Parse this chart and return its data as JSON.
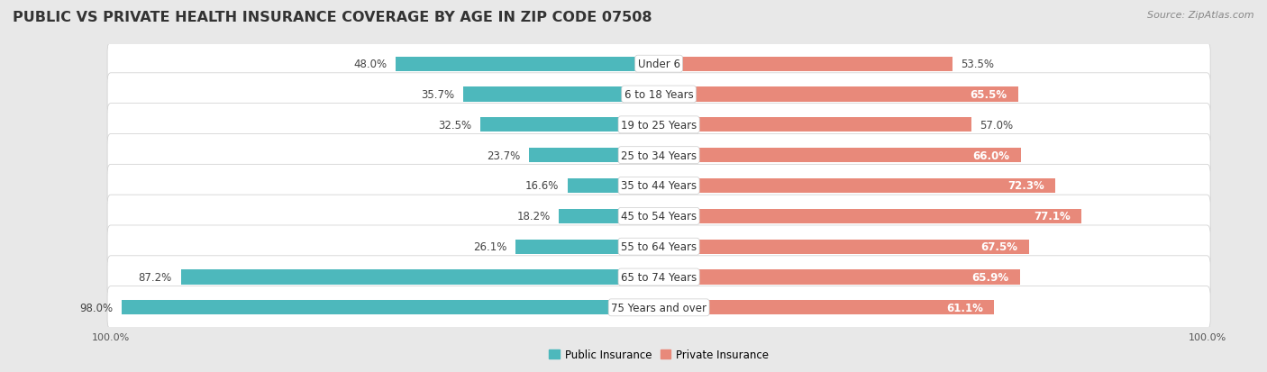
{
  "title": "PUBLIC VS PRIVATE HEALTH INSURANCE COVERAGE BY AGE IN ZIP CODE 07508",
  "source": "Source: ZipAtlas.com",
  "categories": [
    "Under 6",
    "6 to 18 Years",
    "19 to 25 Years",
    "25 to 34 Years",
    "35 to 44 Years",
    "45 to 54 Years",
    "55 to 64 Years",
    "65 to 74 Years",
    "75 Years and over"
  ],
  "public_values": [
    48.0,
    35.7,
    32.5,
    23.7,
    16.6,
    18.2,
    26.1,
    87.2,
    98.0
  ],
  "private_values": [
    53.5,
    65.5,
    57.0,
    66.0,
    72.3,
    77.1,
    67.5,
    65.9,
    61.1
  ],
  "public_color": "#4db8bc",
  "private_color": "#e8897a",
  "private_color_light": "#f2b8ad",
  "background_color": "#e8e8e8",
  "row_bg_color": "#f5f5f5",
  "row_bg_alt": "#ebebeb",
  "title_fontsize": 11.5,
  "label_fontsize": 8.5,
  "value_fontsize": 8.5,
  "tick_fontsize": 8,
  "legend_fontsize": 8.5,
  "source_fontsize": 8
}
